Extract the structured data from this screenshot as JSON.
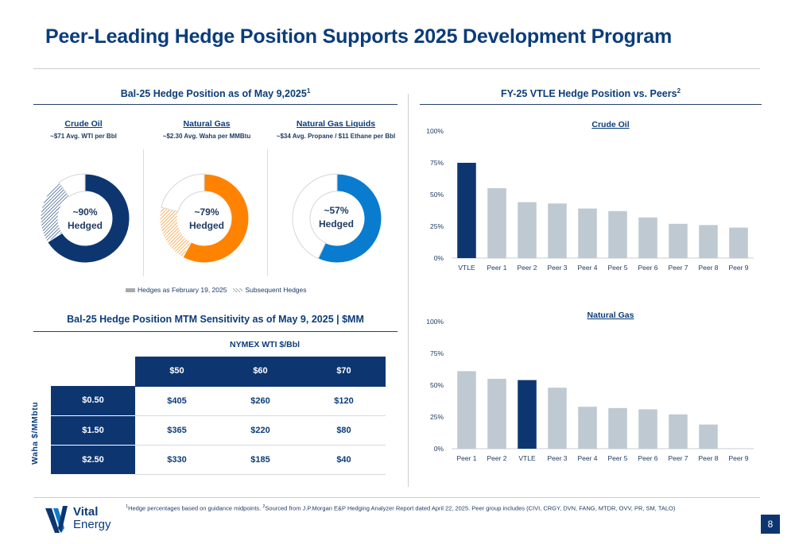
{
  "title": "Peer-Leading Hedge Position Supports 2025 Development Program",
  "left_section": {
    "heading": "Bal-25 Hedge Position as of May 9,2025",
    "heading_sup": "1",
    "donuts": [
      {
        "name": "Crude Oil",
        "sub": "~$71 Avg. WTI per Bbl",
        "label_line1": "~90%",
        "label_line2": "Hedged",
        "hedged_feb": 0.66,
        "subsequent": 0.24,
        "color": "#0d3671"
      },
      {
        "name": "Natural Gas",
        "sub": "~$2.30 Avg. Waha per MMBtu",
        "label_line1": "~79%",
        "label_line2": "Hedged",
        "hedged_feb": 0.58,
        "subsequent": 0.21,
        "color": "#ff8200"
      },
      {
        "name": "Natural Gas Liquids",
        "sub": "~$34 Avg. Propane / $11 Ethane per Bbl",
        "label_line1": "~57%",
        "label_line2": "Hedged",
        "hedged_feb": 0.57,
        "subsequent": 0.0,
        "color": "#0a7ccf"
      }
    ],
    "legend": {
      "item1": "Hedges as February 19, 2025",
      "item2": "Subsequent Hedges"
    }
  },
  "table_section": {
    "heading": "Bal-25 Hedge Position MTM Sensitivity as of May 9, 2025 | $MM",
    "col_axis_label": "NYMEX WTI $/Bbl",
    "row_axis_label": "Waha $/MMbtu",
    "columns": [
      "$50",
      "$60",
      "$70"
    ],
    "rows": [
      {
        "label": "$0.50",
        "values": [
          "$405",
          "$260",
          "$120"
        ]
      },
      {
        "label": "$1.50",
        "values": [
          "$365",
          "$220",
          "$80"
        ]
      },
      {
        "label": "$2.50",
        "values": [
          "$330",
          "$185",
          "$40"
        ]
      }
    ]
  },
  "right_section": {
    "heading": "FY-25 VTLE Hedge Position vs. Peers",
    "heading_sup": "2"
  },
  "chart_data": [
    {
      "type": "bar",
      "title": "Crude Oil",
      "categories": [
        "VTLE",
        "Peer 1",
        "Peer 2",
        "Peer 3",
        "Peer 4",
        "Peer 5",
        "Peer 6",
        "Peer 7",
        "Peer 8",
        "Peer 9"
      ],
      "values": [
        75,
        55,
        44,
        43,
        39,
        37,
        32,
        27,
        26,
        24
      ],
      "yticks": [
        "0%",
        "25%",
        "50%",
        "75%",
        "100%"
      ],
      "ylim": [
        0,
        100
      ],
      "highlight": "VTLE",
      "highlight_color": "#0d3671",
      "bar_color": "#bfc9d1"
    },
    {
      "type": "bar",
      "title": "Natural Gas",
      "categories": [
        "Peer 1",
        "Peer 2",
        "VTLE",
        "Peer 3",
        "Peer 4",
        "Peer 5",
        "Peer 6",
        "Peer 7",
        "Peer 8",
        "Peer 9"
      ],
      "values": [
        61,
        55,
        54,
        48,
        33,
        32,
        31,
        27,
        19,
        0
      ],
      "yticks": [
        "0%",
        "25%",
        "50%",
        "75%",
        "100%"
      ],
      "ylim": [
        0,
        100
      ],
      "highlight": "VTLE",
      "highlight_color": "#0d3671",
      "bar_color": "#bfc9d1"
    }
  ],
  "footnote": {
    "sup1": "1",
    "text1": "Hedge percentages based on guidance midpoints. ",
    "sup2": "2",
    "text2": "Sourced from J.P.Morgan E&P Hedging Analyzer Report dated April 22, 2025. Peer group includes (CIVI, CRGY, DVN, FANG, MTDR, OVV, PR, SM, TALO)"
  },
  "logo": {
    "line1": "Vital",
    "line2": "Energy"
  },
  "page_number": "8"
}
